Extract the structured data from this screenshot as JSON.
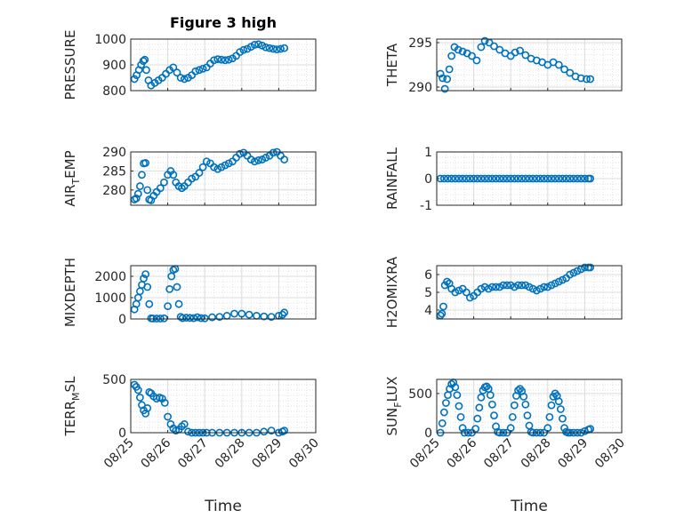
{
  "figure": {
    "title": "Figure 3 high",
    "xlabel": "Time"
  },
  "chart_data": [
    {
      "type": "scatter",
      "ylabel": "PRESSURE",
      "xlim": [
        0,
        5
      ],
      "ylim": [
        800,
        1000
      ],
      "yticks": [
        800,
        900,
        1000
      ],
      "xticks": [
        "08/25",
        "08/26",
        "08/27",
        "08/28",
        "08/29",
        "08/30"
      ],
      "grid": true,
      "color": "#0072BD",
      "x": [
        0.1,
        0.16,
        0.22,
        0.28,
        0.34,
        0.38,
        0.42,
        0.48,
        0.55,
        0.65,
        0.75,
        0.85,
        0.95,
        1.05,
        1.15,
        1.25,
        1.35,
        1.45,
        1.55,
        1.65,
        1.75,
        1.85,
        1.95,
        2.05,
        2.15,
        2.25,
        2.35,
        2.45,
        2.55,
        2.65,
        2.75,
        2.85,
        2.95,
        3.05,
        3.15,
        3.25,
        3.35,
        3.45,
        3.55,
        3.65,
        3.75,
        3.85,
        3.95,
        4.05,
        4.15
      ],
      "values": [
        845,
        860,
        880,
        900,
        915,
        920,
        880,
        840,
        820,
        830,
        840,
        850,
        865,
        880,
        890,
        870,
        850,
        845,
        850,
        860,
        875,
        880,
        885,
        890,
        905,
        918,
        922,
        920,
        918,
        920,
        925,
        935,
        950,
        958,
        962,
        970,
        978,
        980,
        975,
        968,
        965,
        962,
        960,
        962,
        965
      ]
    },
    {
      "type": "scatter",
      "ylabel": "THETA",
      "xlim": [
        0,
        5
      ],
      "ylim": [
        289.6,
        295.4
      ],
      "yticks": [
        290,
        295
      ],
      "xticks": [
        "08/25",
        "08/26",
        "08/27",
        "08/28",
        "08/29",
        "08/30"
      ],
      "grid": true,
      "color": "#0072BD",
      "x": [
        0.1,
        0.16,
        0.22,
        0.28,
        0.34,
        0.4,
        0.48,
        0.58,
        0.7,
        0.82,
        0.95,
        1.08,
        1.2,
        1.3,
        1.42,
        1.55,
        1.7,
        1.85,
        2.0,
        2.12,
        2.25,
        2.4,
        2.55,
        2.7,
        2.85,
        3.0,
        3.15,
        3.3,
        3.45,
        3.6,
        3.75,
        3.9,
        4.05,
        4.15
      ],
      "values": [
        291.5,
        291.0,
        289.8,
        290.9,
        292.0,
        293.5,
        294.5,
        294.2,
        294.0,
        293.8,
        293.5,
        293.0,
        294.5,
        295.2,
        295.0,
        294.6,
        294.2,
        293.8,
        293.5,
        293.9,
        294.1,
        293.6,
        293.2,
        293.0,
        292.8,
        292.5,
        292.8,
        292.5,
        292.0,
        291.6,
        291.2,
        291.0,
        290.9,
        290.9
      ]
    },
    {
      "type": "scatter",
      "ylabel": "AIR_TEMP",
      "xlim": [
        0,
        5
      ],
      "ylim": [
        276,
        290
      ],
      "yticks": [
        280,
        285,
        290
      ],
      "xticks": [
        "08/25",
        "08/26",
        "08/27",
        "08/28",
        "08/29",
        "08/30"
      ],
      "grid": true,
      "color": "#0072BD",
      "x": [
        0.1,
        0.15,
        0.2,
        0.25,
        0.3,
        0.35,
        0.4,
        0.45,
        0.5,
        0.55,
        0.62,
        0.7,
        0.8,
        0.9,
        1.0,
        1.08,
        1.15,
        1.22,
        1.3,
        1.38,
        1.45,
        1.55,
        1.65,
        1.75,
        1.85,
        1.95,
        2.05,
        2.15,
        2.25,
        2.35,
        2.45,
        2.55,
        2.65,
        2.75,
        2.85,
        2.95,
        3.05,
        3.15,
        3.25,
        3.35,
        3.45,
        3.55,
        3.65,
        3.75,
        3.85,
        3.95,
        4.05,
        4.15
      ],
      "values": [
        277.5,
        277.8,
        279.0,
        281.0,
        284.0,
        287.0,
        287.1,
        280.0,
        277.5,
        277.3,
        278.5,
        279.5,
        280.5,
        282.0,
        284.0,
        285.0,
        284.0,
        282.0,
        281.0,
        280.5,
        281.0,
        282.0,
        283.0,
        283.5,
        284.5,
        286.0,
        287.5,
        287.0,
        286.0,
        285.5,
        286.0,
        286.5,
        287.0,
        287.5,
        288.5,
        289.5,
        289.8,
        289.0,
        288.0,
        287.5,
        287.8,
        288.0,
        288.5,
        289.0,
        289.8,
        290.0,
        289.0,
        288.0
      ]
    },
    {
      "type": "scatter",
      "ylabel": "RAINFALL",
      "xlim": [
        0,
        5
      ],
      "ylim": [
        -1,
        1
      ],
      "yticks": [
        -1,
        0,
        1
      ],
      "xticks": [
        "08/25",
        "08/26",
        "08/27",
        "08/28",
        "08/29",
        "08/30"
      ],
      "grid": true,
      "color": "#0072BD",
      "x": [
        0.1,
        0.2,
        0.3,
        0.4,
        0.5,
        0.6,
        0.7,
        0.8,
        0.9,
        1.0,
        1.1,
        1.2,
        1.3,
        1.4,
        1.5,
        1.6,
        1.7,
        1.8,
        1.9,
        2.0,
        2.1,
        2.2,
        2.3,
        2.4,
        2.5,
        2.6,
        2.7,
        2.8,
        2.9,
        3.0,
        3.1,
        3.2,
        3.3,
        3.4,
        3.5,
        3.6,
        3.7,
        3.8,
        3.9,
        4.0,
        4.1,
        4.15
      ],
      "values": [
        0,
        0,
        0,
        0,
        0,
        0,
        0,
        0,
        0,
        0,
        0,
        0,
        0,
        0,
        0,
        0,
        0,
        0,
        0,
        0,
        0,
        0,
        0,
        0,
        0,
        0,
        0,
        0,
        0,
        0,
        0,
        0,
        0,
        0,
        0,
        0,
        0,
        0,
        0,
        0,
        0,
        0
      ]
    },
    {
      "type": "scatter",
      "ylabel": "MIXDEPTH",
      "xlim": [
        0,
        5
      ],
      "ylim": [
        0,
        2500
      ],
      "yticks": [
        0,
        1000,
        2000
      ],
      "xticks": [
        "08/25",
        "08/26",
        "08/27",
        "08/28",
        "08/29",
        "08/30"
      ],
      "grid": true,
      "color": "#0072BD",
      "x": [
        0.1,
        0.15,
        0.2,
        0.25,
        0.3,
        0.35,
        0.4,
        0.45,
        0.5,
        0.55,
        0.6,
        0.7,
        0.8,
        0.9,
        1.0,
        1.05,
        1.1,
        1.15,
        1.2,
        1.25,
        1.3,
        1.35,
        1.4,
        1.5,
        1.6,
        1.7,
        1.8,
        1.9,
        2.0,
        2.2,
        2.4,
        2.6,
        2.8,
        3.0,
        3.2,
        3.4,
        3.6,
        3.8,
        4.0,
        4.1,
        4.15
      ],
      "values": [
        450,
        700,
        1000,
        1300,
        1600,
        1900,
        2100,
        1500,
        700,
        30,
        20,
        20,
        20,
        30,
        600,
        1400,
        2000,
        2300,
        2350,
        1500,
        700,
        100,
        40,
        60,
        50,
        40,
        80,
        40,
        30,
        80,
        100,
        150,
        250,
        250,
        200,
        150,
        120,
        100,
        150,
        200,
        300
      ]
    },
    {
      "type": "scatter",
      "ylabel": "H2OMIXRA",
      "xlim": [
        0,
        5
      ],
      "ylim": [
        3.5,
        6.5
      ],
      "yticks": [
        4,
        5,
        6
      ],
      "xticks": [
        "08/25",
        "08/26",
        "08/27",
        "08/28",
        "08/29",
        "08/30"
      ],
      "grid": true,
      "color": "#0072BD",
      "x": [
        0.1,
        0.14,
        0.18,
        0.22,
        0.28,
        0.34,
        0.4,
        0.5,
        0.6,
        0.7,
        0.8,
        0.9,
        1.0,
        1.1,
        1.2,
        1.3,
        1.4,
        1.5,
        1.6,
        1.7,
        1.8,
        1.9,
        2.0,
        2.1,
        2.2,
        2.3,
        2.4,
        2.5,
        2.6,
        2.7,
        2.8,
        2.9,
        3.0,
        3.1,
        3.2,
        3.3,
        3.4,
        3.5,
        3.6,
        3.7,
        3.8,
        3.9,
        4.0,
        4.1,
        4.15
      ],
      "values": [
        3.7,
        3.8,
        4.2,
        5.4,
        5.6,
        5.5,
        5.2,
        5.0,
        5.1,
        5.2,
        5.0,
        4.7,
        4.8,
        5.0,
        5.2,
        5.3,
        5.2,
        5.3,
        5.3,
        5.3,
        5.4,
        5.4,
        5.4,
        5.3,
        5.4,
        5.4,
        5.4,
        5.3,
        5.2,
        5.1,
        5.2,
        5.3,
        5.3,
        5.4,
        5.5,
        5.6,
        5.7,
        5.8,
        6.0,
        6.1,
        6.2,
        6.3,
        6.4,
        6.4,
        6.4
      ]
    },
    {
      "type": "scatter",
      "ylabel": "TERR_MSL",
      "xlim": [
        0,
        5
      ],
      "ylim": [
        0,
        500
      ],
      "yticks": [
        0,
        500
      ],
      "xticks": [
        "08/25",
        "08/26",
        "08/27",
        "08/28",
        "08/29",
        "08/30"
      ],
      "grid": true,
      "color": "#0072BD",
      "x": [
        0.1,
        0.15,
        0.2,
        0.25,
        0.3,
        0.35,
        0.4,
        0.45,
        0.5,
        0.55,
        0.62,
        0.7,
        0.78,
        0.85,
        0.92,
        1.0,
        1.08,
        1.15,
        1.22,
        1.3,
        1.38,
        1.45,
        1.55,
        1.65,
        1.75,
        1.85,
        1.95,
        2.05,
        2.2,
        2.4,
        2.6,
        2.8,
        3.0,
        3.2,
        3.4,
        3.6,
        3.8,
        4.0,
        4.1,
        4.15
      ],
      "values": [
        450,
        430,
        400,
        330,
        260,
        210,
        180,
        230,
        380,
        370,
        340,
        320,
        330,
        320,
        280,
        150,
        80,
        40,
        20,
        30,
        60,
        80,
        10,
        0,
        0,
        0,
        0,
        0,
        0,
        0,
        0,
        0,
        0,
        0,
        0,
        10,
        20,
        0,
        10,
        20
      ]
    },
    {
      "type": "scatter",
      "ylabel": "SUN_FLUX",
      "xlim": [
        0,
        5
      ],
      "ylim": [
        0,
        680
      ],
      "yticks": [
        0,
        500
      ],
      "xticks": [
        "08/25",
        "08/26",
        "08/27",
        "08/28",
        "08/29",
        "08/30"
      ],
      "grid": true,
      "color": "#0072BD",
      "x": [
        0.1,
        0.15,
        0.2,
        0.25,
        0.3,
        0.35,
        0.4,
        0.45,
        0.5,
        0.55,
        0.6,
        0.65,
        0.7,
        0.75,
        0.85,
        0.95,
        1.05,
        1.1,
        1.15,
        1.2,
        1.25,
        1.3,
        1.35,
        1.4,
        1.45,
        1.5,
        1.55,
        1.6,
        1.65,
        1.7,
        1.8,
        1.9,
        2.0,
        2.05,
        2.1,
        2.15,
        2.2,
        2.25,
        2.3,
        2.35,
        2.4,
        2.45,
        2.5,
        2.55,
        2.6,
        2.7,
        2.8,
        2.9,
        3.0,
        3.05,
        3.1,
        3.15,
        3.2,
        3.25,
        3.3,
        3.35,
        3.4,
        3.45,
        3.5,
        3.55,
        3.6,
        3.7,
        3.8,
        3.9,
        4.0,
        4.1,
        4.15
      ],
      "values": [
        0,
        120,
        260,
        380,
        480,
        560,
        620,
        640,
        580,
        480,
        340,
        200,
        60,
        0,
        0,
        0,
        50,
        180,
        320,
        450,
        540,
        580,
        590,
        560,
        480,
        360,
        220,
        80,
        10,
        0,
        0,
        0,
        60,
        200,
        350,
        470,
        540,
        560,
        530,
        460,
        360,
        220,
        90,
        10,
        0,
        0,
        0,
        0,
        60,
        200,
        350,
        460,
        500,
        470,
        400,
        300,
        180,
        60,
        10,
        0,
        0,
        0,
        0,
        0,
        20,
        40,
        50
      ]
    }
  ]
}
